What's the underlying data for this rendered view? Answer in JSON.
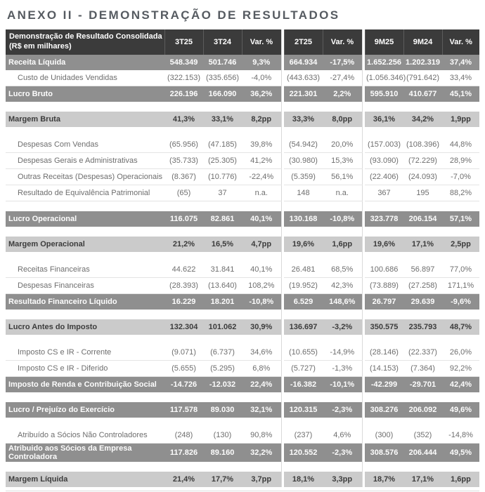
{
  "page_title": "ANEXO II - DEMONSTRAÇÃO DE RESULTADOS",
  "colors": {
    "header_bg": "#3b3b3b",
    "band_dark_bg": "#8f8f8f",
    "band_light_bg": "#cbcbcb",
    "title_text": "#565b61",
    "detail_text": "#6e6e6e"
  },
  "table": {
    "header": {
      "label": "Demonstração de Resultado Consolidada",
      "sublabel": "(R$ em milhares)",
      "columns": [
        "3T25",
        "3T24",
        "Var. %",
        "2T25",
        "Var. %",
        "9M25",
        "9M24",
        "Var. %"
      ]
    },
    "rows": [
      {
        "type": "dark",
        "label": "Receita Líquida",
        "values": [
          "548.349",
          "501.746",
          "9,3%",
          "664.934",
          "-17,5%",
          "1.652.256",
          "1.202.319",
          "37,4%"
        ]
      },
      {
        "type": "detail",
        "label": "Custo de Unidades Vendidas",
        "values": [
          "(322.153)",
          "(335.656)",
          "-4,0%",
          "(443.633)",
          "-27,4%",
          "(1.056.346)",
          "(791.642)",
          "33,4%"
        ]
      },
      {
        "type": "dark",
        "label": "Lucro Bruto",
        "values": [
          "226.196",
          "166.090",
          "36,2%",
          "221.301",
          "2,2%",
          "595.910",
          "410.677",
          "45,1%"
        ]
      },
      {
        "type": "spacer"
      },
      {
        "type": "light",
        "label": "Margem Bruta",
        "values": [
          "41,3%",
          "33,1%",
          "8,2pp",
          "33,3%",
          "8,0pp",
          "36,1%",
          "34,2%",
          "1,9pp"
        ]
      },
      {
        "type": "spacer"
      },
      {
        "type": "detail",
        "label": "Despesas Com Vendas",
        "values": [
          "(65.956)",
          "(47.185)",
          "39,8%",
          "(54.942)",
          "20,0%",
          "(157.003)",
          "(108.396)",
          "44,8%"
        ]
      },
      {
        "type": "detail",
        "label": "Despesas Gerais e Administrativas",
        "values": [
          "(35.733)",
          "(25.305)",
          "41,2%",
          "(30.980)",
          "15,3%",
          "(93.090)",
          "(72.229)",
          "28,9%"
        ]
      },
      {
        "type": "detail",
        "label": "Outras Receitas (Despesas) Operacionais",
        "values": [
          "(8.367)",
          "(10.776)",
          "-22,4%",
          "(5.359)",
          "56,1%",
          "(22.406)",
          "(24.093)",
          "-7,0%"
        ]
      },
      {
        "type": "detail",
        "label": "Resultado de Equivalência Patrimonial",
        "values": [
          "(65)",
          "37",
          "n.a.",
          "148",
          "n.a.",
          "367",
          "195",
          "88,2%"
        ]
      },
      {
        "type": "spacer"
      },
      {
        "type": "dark",
        "label": "Lucro Operacional",
        "values": [
          "116.075",
          "82.861",
          "40,1%",
          "130.168",
          "-10,8%",
          "323.778",
          "206.154",
          "57,1%"
        ]
      },
      {
        "type": "spacer"
      },
      {
        "type": "light",
        "label": "Margem Operacional",
        "values": [
          "21,2%",
          "16,5%",
          "4,7pp",
          "19,6%",
          "1,6pp",
          "19,6%",
          "17,1%",
          "2,5pp"
        ]
      },
      {
        "type": "spacer"
      },
      {
        "type": "detail",
        "label": "Receitas Financeiras",
        "values": [
          "44.622",
          "31.841",
          "40,1%",
          "26.481",
          "68,5%",
          "100.686",
          "56.897",
          "77,0%"
        ]
      },
      {
        "type": "detail",
        "label": "Despesas Financeiras",
        "values": [
          "(28.393)",
          "(13.640)",
          "108,2%",
          "(19.952)",
          "42,3%",
          "(73.889)",
          "(27.258)",
          "171,1%"
        ]
      },
      {
        "type": "dark",
        "label": "Resultado Financeiro Líquido",
        "values": [
          "16.229",
          "18.201",
          "-10,8%",
          "6.529",
          "148,6%",
          "26.797",
          "29.639",
          "-9,6%"
        ]
      },
      {
        "type": "spacer"
      },
      {
        "type": "light",
        "label": "Lucro Antes do Imposto",
        "values": [
          "132.304",
          "101.062",
          "30,9%",
          "136.697",
          "-3,2%",
          "350.575",
          "235.793",
          "48,7%"
        ]
      },
      {
        "type": "spacer"
      },
      {
        "type": "detail",
        "label": "Imposto CS e IR - Corrente",
        "values": [
          "(9.071)",
          "(6.737)",
          "34,6%",
          "(10.655)",
          "-14,9%",
          "(28.146)",
          "(22.337)",
          "26,0%"
        ]
      },
      {
        "type": "detail",
        "label": "Imposto CS e IR - Diferido",
        "values": [
          "(5.655)",
          "(5.295)",
          "6,8%",
          "(5.727)",
          "-1,3%",
          "(14.153)",
          "(7.364)",
          "92,2%"
        ]
      },
      {
        "type": "dark",
        "label": "Imposto de Renda e Contribuição Social",
        "values": [
          "-14.726",
          "-12.032",
          "22,4%",
          "-16.382",
          "-10,1%",
          "-42.299",
          "-29.701",
          "42,4%"
        ]
      },
      {
        "type": "spacer"
      },
      {
        "type": "dark",
        "label": "Lucro / Prejuízo do Exercício",
        "values": [
          "117.578",
          "89.030",
          "32,1%",
          "120.315",
          "-2,3%",
          "308.276",
          "206.092",
          "49,6%"
        ]
      },
      {
        "type": "spacer"
      },
      {
        "type": "detail",
        "label": "Atribuído a Sócios Não Controladores",
        "values": [
          "(248)",
          "(130)",
          "90,8%",
          "(237)",
          "4,6%",
          "(300)",
          "(352)",
          "-14,8%"
        ]
      },
      {
        "type": "dark",
        "label": "Atribuido aos Sócios da Empresa Controladora",
        "values": [
          "117.826",
          "89.160",
          "32,2%",
          "120.552",
          "-2,3%",
          "308.576",
          "206.444",
          "49,5%"
        ]
      },
      {
        "type": "spacer"
      },
      {
        "type": "light",
        "label": "Margem Líquida",
        "values": [
          "21,4%",
          "17,7%",
          "3,7pp",
          "18,1%",
          "3,3pp",
          "18,7%",
          "17,1%",
          "1,6pp"
        ]
      }
    ]
  }
}
